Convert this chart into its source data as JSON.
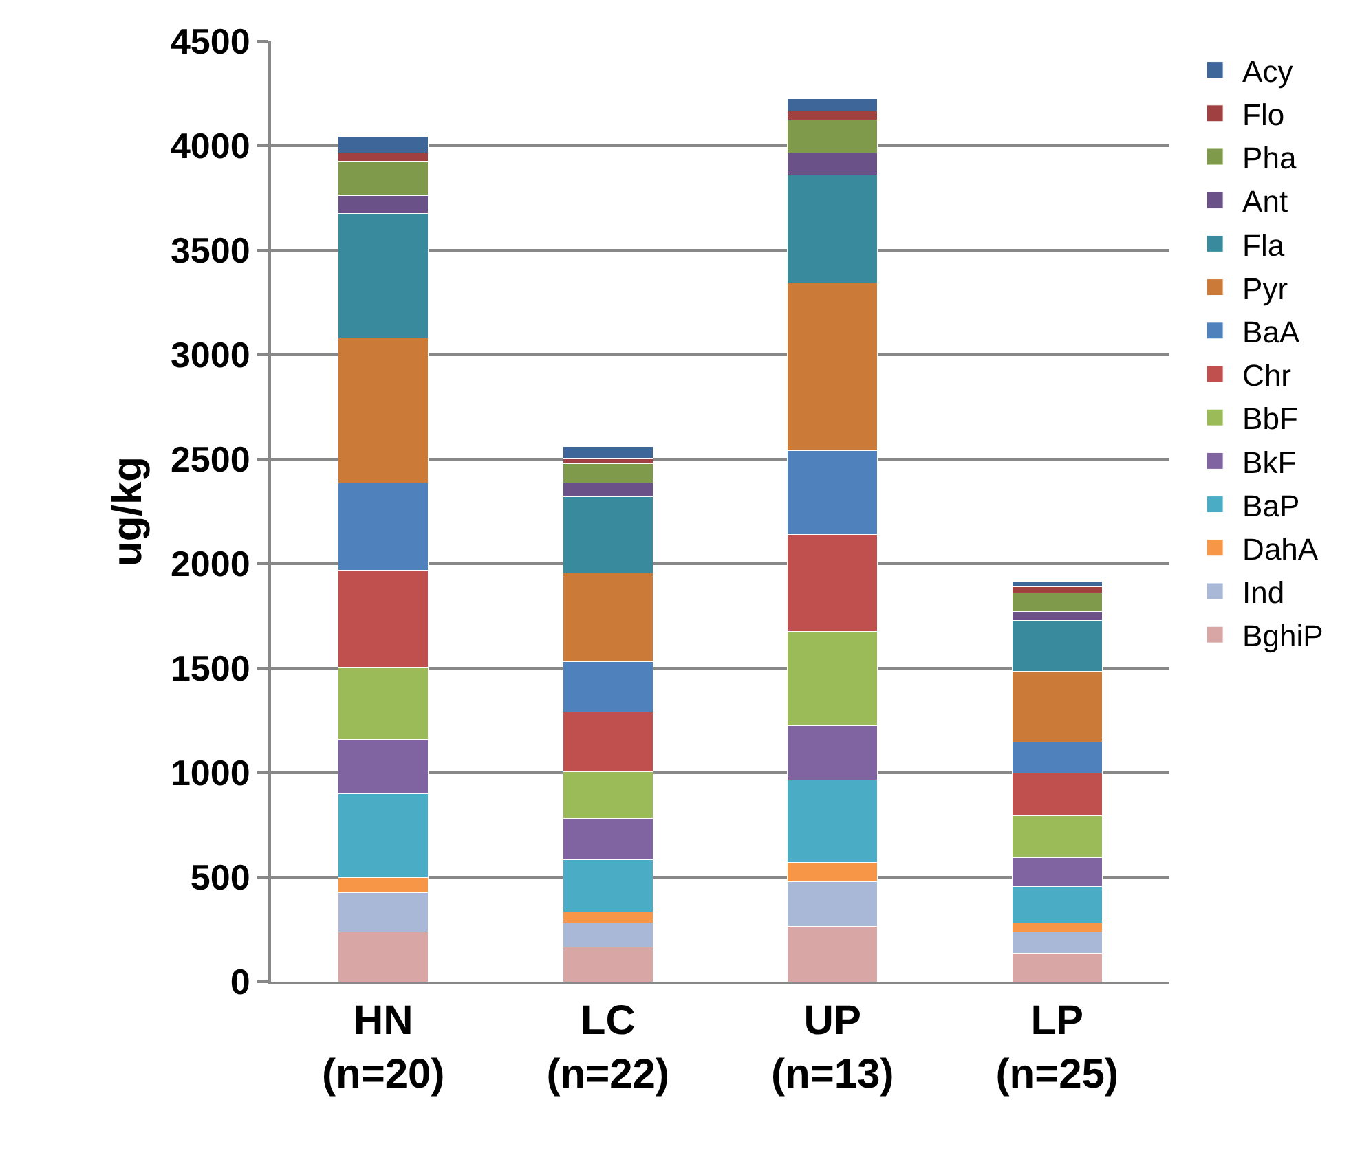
{
  "chart_data": {
    "type": "bar",
    "stacked": true,
    "ylabel": "ug/kg",
    "categories": [
      "HN\n(n=20)",
      "LC\n(n=22)",
      "UP\n(n=13)",
      "LP\n(n=25)"
    ],
    "ylim": [
      0,
      4500
    ],
    "yticks": [
      0,
      500,
      1000,
      1500,
      2000,
      2500,
      3000,
      3500,
      4000,
      4500
    ],
    "grid": "y",
    "legend": "right",
    "series": [
      {
        "name": "BghiP",
        "color": "#d9a6a6",
        "values": [
          240,
          165,
          265,
          135
        ]
      },
      {
        "name": "Ind",
        "color": "#a9b8d6",
        "values": [
          185,
          115,
          215,
          105
        ]
      },
      {
        "name": "DahA",
        "color": "#f79646",
        "values": [
          75,
          55,
          90,
          40
        ]
      },
      {
        "name": "BaP",
        "color": "#4bacc6",
        "values": [
          400,
          250,
          395,
          175
        ]
      },
      {
        "name": "BkF",
        "color": "#8064a2",
        "values": [
          260,
          195,
          260,
          140
        ]
      },
      {
        "name": "BbF",
        "color": "#9bbb59",
        "values": [
          345,
          225,
          450,
          200
        ]
      },
      {
        "name": "Chr",
        "color": "#c0504d",
        "values": [
          465,
          285,
          465,
          205
        ]
      },
      {
        "name": "BaA",
        "color": "#4f81bd",
        "values": [
          415,
          240,
          400,
          145
        ]
      },
      {
        "name": "Pyr",
        "color": "#cc7a38",
        "values": [
          695,
          425,
          805,
          340
        ]
      },
      {
        "name": "Fla",
        "color": "#3a8a9e",
        "values": [
          595,
          365,
          515,
          245
        ]
      },
      {
        "name": "Ant",
        "color": "#6a5288",
        "values": [
          88,
          65,
          105,
          40
        ]
      },
      {
        "name": "Pha",
        "color": "#7e9a4a",
        "values": [
          162,
          95,
          160,
          90
        ]
      },
      {
        "name": "Flo",
        "color": "#a04040",
        "values": [
          40,
          25,
          40,
          30
        ]
      },
      {
        "name": "Acy",
        "color": "#3e6698",
        "values": [
          80,
          55,
          60,
          25
        ]
      }
    ]
  }
}
